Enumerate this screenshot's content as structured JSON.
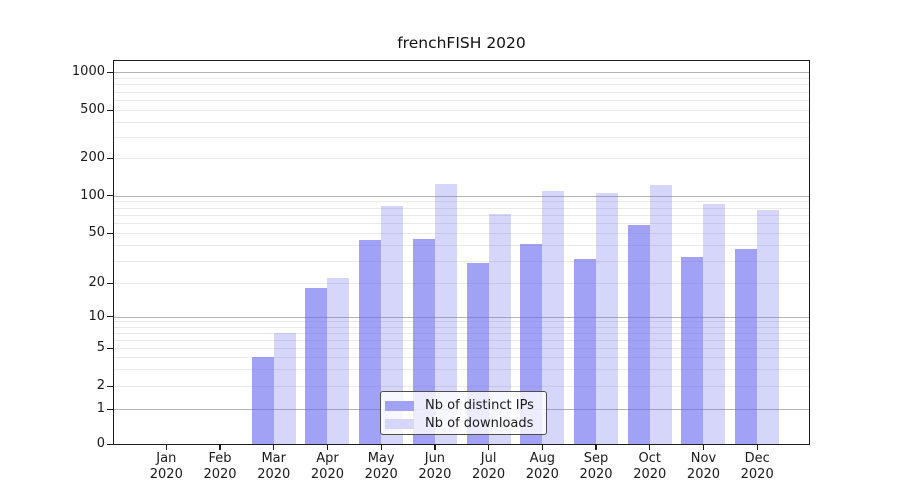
{
  "title": "frenchFISH 2020",
  "chart_data": {
    "type": "bar",
    "title": "frenchFISH 2020",
    "x_months": [
      "Jan",
      "Feb",
      "Mar",
      "Apr",
      "May",
      "Jun",
      "Jul",
      "Aug",
      "Sep",
      "Oct",
      "Nov",
      "Dec"
    ],
    "x_year": "2020",
    "series": [
      {
        "name": "Nb of distinct IPs",
        "values": [
          0,
          0,
          4,
          18,
          44,
          45,
          29,
          41,
          31,
          58,
          32,
          37
        ],
        "fill": "rgba(103,103,241,0.62)",
        "swatch": "#a1a1f6"
      },
      {
        "name": "Nb of downloads",
        "values": [
          0,
          0,
          7,
          22,
          82,
          123,
          71,
          110,
          106,
          121,
          86,
          77
        ],
        "fill": "rgba(103,103,241,0.27)",
        "swatch": "#d6d6fb"
      }
    ],
    "yscale": "symlog",
    "y_ticks": [
      0,
      1,
      2,
      5,
      10,
      20,
      50,
      100,
      200,
      500,
      1000
    ],
    "ylim": [
      0,
      1250
    ],
    "grid": "horizontal major+minor",
    "legend_position": "lower center"
  },
  "colors": {
    "grid_major": "#b4b4b4",
    "grid_minor": "#eaeaea",
    "axis": "#1c1c1c",
    "text": "#1a1a1a",
    "legend_border": "#4d4d4d",
    "legend_bg": "rgba(255,255,255,0.8)"
  }
}
